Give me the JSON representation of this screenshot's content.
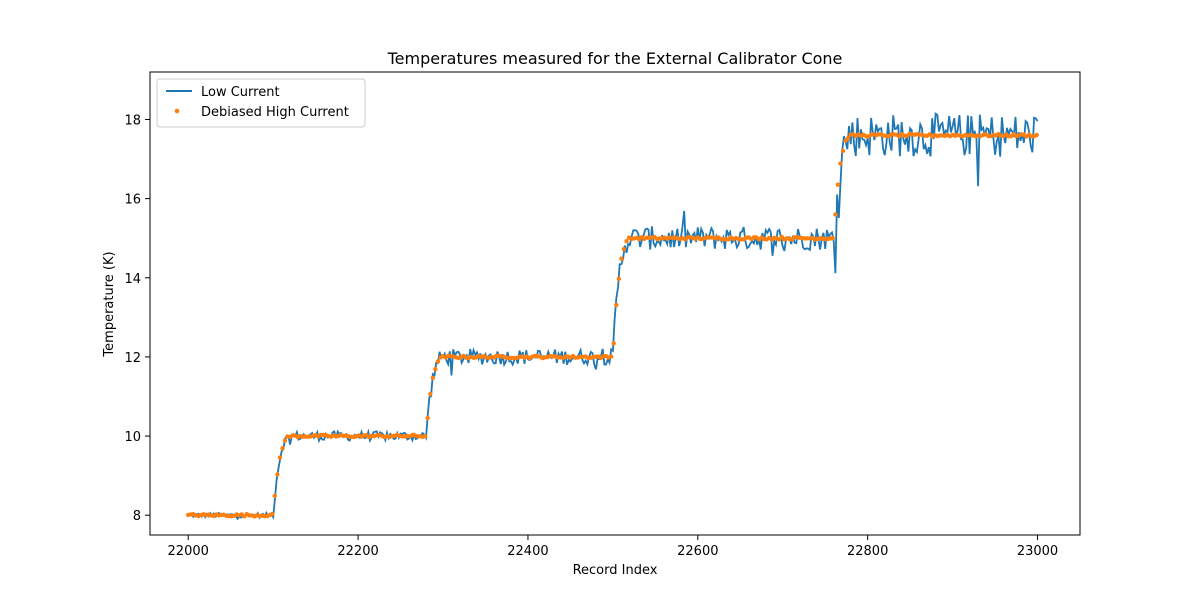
{
  "chart_data": {
    "type": "line",
    "title": "Temperatures measured for the External Calibrator Cone",
    "xlabel": "Record Index",
    "ylabel": "Temperature (K)",
    "xlim": [
      21955,
      23050
    ],
    "ylim": [
      7.5,
      19.2
    ],
    "xticks": [
      22000,
      22200,
      22400,
      22600,
      22800,
      23000
    ],
    "yticks": [
      8,
      10,
      12,
      14,
      16,
      18
    ],
    "grid": false,
    "legend_position": "top-left",
    "series": [
      {
        "name": "Low Current",
        "style": "line",
        "color": "#1f77b4",
        "description": "noisy step series following the plateaus",
        "plateaus": [
          {
            "x_start": 22000,
            "x_end": 22100,
            "level": 8.0,
            "noise": 0.06
          },
          {
            "x_start": 22105,
            "x_end": 22280,
            "level": 10.0,
            "noise": 0.12
          },
          {
            "x_start": 22285,
            "x_end": 22500,
            "level": 12.0,
            "noise": 0.2
          },
          {
            "x_start": 22505,
            "x_end": 22760,
            "level": 15.0,
            "noise": 0.3
          },
          {
            "x_start": 22765,
            "x_end": 23000,
            "level": 17.6,
            "noise": 0.55
          }
        ]
      },
      {
        "name": "Debiased High Current",
        "style": "scatter",
        "color": "#ff7f0e",
        "description": "smooth step series",
        "plateaus": [
          {
            "x_start": 22000,
            "x_end": 22100,
            "level": 8.0
          },
          {
            "x_start": 22105,
            "x_end": 22280,
            "level": 10.0
          },
          {
            "x_start": 22285,
            "x_end": 22500,
            "level": 12.0
          },
          {
            "x_start": 22505,
            "x_end": 22760,
            "level": 15.0
          },
          {
            "x_start": 22765,
            "x_end": 23000,
            "level": 17.6
          }
        ]
      }
    ]
  }
}
